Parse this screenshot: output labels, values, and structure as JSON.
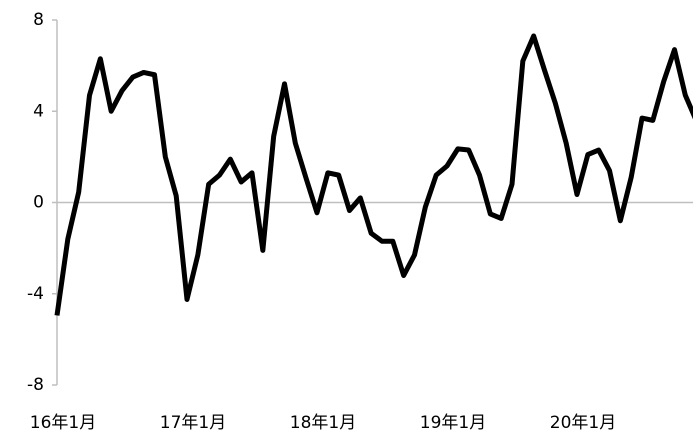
{
  "chart_data": {
    "type": "line",
    "categories": [
      "16年1月",
      null,
      null,
      null,
      null,
      null,
      null,
      null,
      null,
      null,
      null,
      null,
      "17年1月",
      null,
      null,
      null,
      null,
      null,
      null,
      null,
      null,
      null,
      null,
      null,
      "18年1月",
      null,
      null,
      null,
      null,
      null,
      null,
      null,
      null,
      null,
      null,
      null,
      "19年1月",
      null,
      null,
      null,
      null,
      null,
      null,
      null,
      null,
      null,
      null,
      null,
      "20年1月",
      null,
      null,
      null,
      null,
      null,
      null,
      null,
      null,
      null,
      null,
      null
    ],
    "series": [
      {
        "color": "#000000",
        "values": [
          -4.95,
          -1.6,
          0.45,
          4.7,
          6.3,
          4.0,
          4.9,
          5.5,
          5.7,
          5.6,
          2.0,
          0.3,
          -4.25,
          -2.3,
          0.8,
          1.2,
          1.9,
          0.9,
          1.3,
          -2.1,
          2.9,
          5.2,
          2.6,
          1.05,
          -0.45,
          1.3,
          1.2,
          -0.35,
          0.2,
          -1.35,
          -1.7,
          -1.7,
          -3.2,
          -2.3,
          -0.2,
          1.2,
          1.6,
          2.35,
          2.3,
          1.2,
          -0.5,
          -0.7,
          0.8,
          6.2,
          7.3,
          5.8,
          4.35,
          2.6,
          0.35,
          2.1,
          2.3,
          1.4,
          -0.8,
          1.1,
          3.7,
          3.6,
          5.3,
          6.7,
          4.7,
          3.6
        ]
      }
    ],
    "ylim": [
      -8,
      8
    ],
    "yticks": [
      -8,
      -4,
      0,
      4,
      8
    ]
  }
}
